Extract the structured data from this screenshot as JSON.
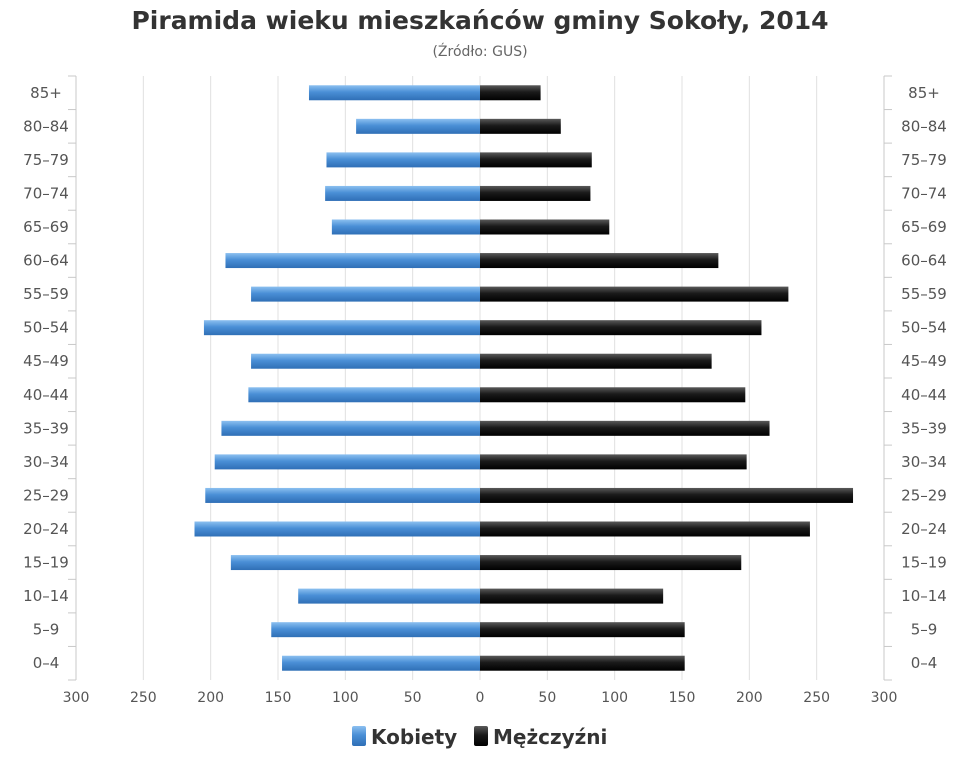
{
  "chart_data": {
    "type": "bar",
    "orientation": "horizontal",
    "layout": "population-pyramid",
    "title": "Piramida wieku mieszkańców gminy Sokoły, 2014",
    "subtitle": "(Źródło: GUS)",
    "categories": [
      "85+",
      "80–84",
      "75–79",
      "70–74",
      "65–69",
      "60–64",
      "55–59",
      "50–54",
      "45–49",
      "40–44",
      "35–39",
      "30–34",
      "25–29",
      "20–24",
      "15–19",
      "10–14",
      "5–9",
      "0–4"
    ],
    "series": [
      {
        "name": "Kobiety",
        "side": "left",
        "color": "#4a8fd6",
        "values": [
          127,
          92,
          114,
          115,
          110,
          189,
          170,
          205,
          170,
          172,
          192,
          197,
          204,
          212,
          185,
          135,
          155,
          147
        ]
      },
      {
        "name": "Mężczyźni",
        "side": "right",
        "color": "#1a1a1a",
        "values": [
          45,
          60,
          83,
          82,
          96,
          177,
          229,
          209,
          172,
          197,
          215,
          198,
          277,
          245,
          194,
          136,
          152,
          152
        ]
      }
    ],
    "xlim": [
      -300,
      300
    ],
    "x_ticks": [
      {
        "value": -300,
        "label": "300"
      },
      {
        "value": -250,
        "label": "250"
      },
      {
        "value": -200,
        "label": "200"
      },
      {
        "value": -150,
        "label": "150"
      },
      {
        "value": -100,
        "label": "100"
      },
      {
        "value": -50,
        "label": "50"
      },
      {
        "value": 0,
        "label": "0"
      },
      {
        "value": 50,
        "label": "50"
      },
      {
        "value": 100,
        "label": "100"
      },
      {
        "value": 150,
        "label": "150"
      },
      {
        "value": 200,
        "label": "200"
      },
      {
        "value": 250,
        "label": "250"
      },
      {
        "value": 300,
        "label": "300"
      }
    ],
    "grid": "vertical",
    "legend": "bottom-center"
  }
}
